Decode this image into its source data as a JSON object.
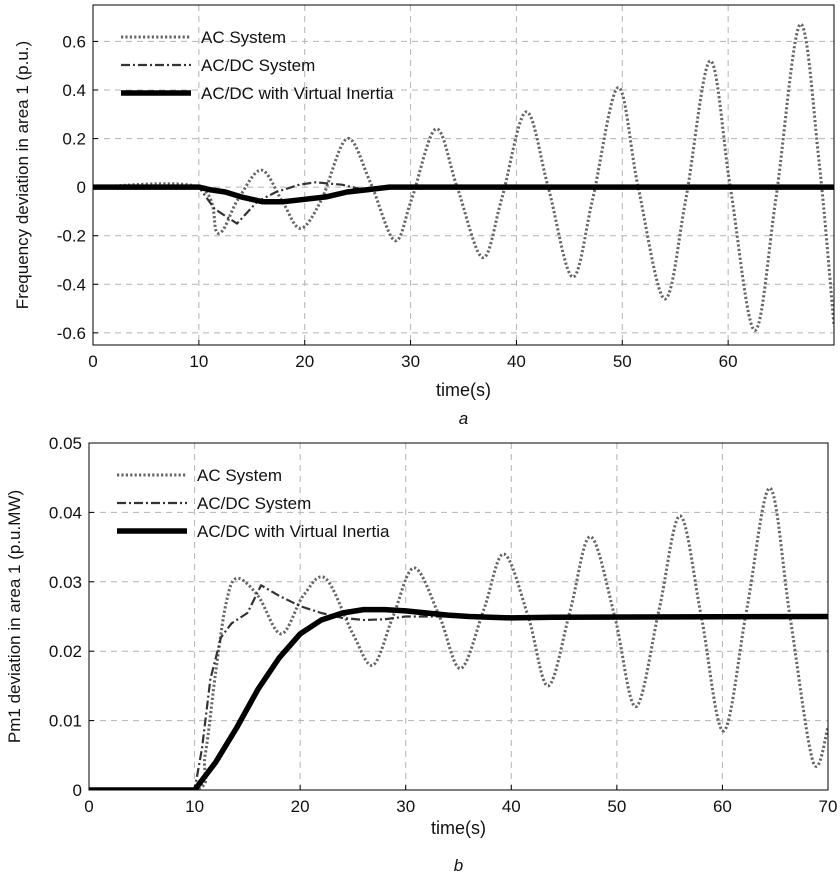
{
  "chart_data": [
    {
      "type": "line",
      "caption": "a",
      "title": "",
      "xlabel": "time(s)",
      "ylabel": "Frequency deviation in area 1 (p.u.)",
      "xlim": [
        0,
        70
      ],
      "ylim": [
        -0.65,
        0.75
      ],
      "xticks": [
        0,
        10,
        20,
        30,
        40,
        50,
        60
      ],
      "yticks": [
        -0.6,
        -0.4,
        -0.2,
        0,
        0.2,
        0.4,
        0.6
      ],
      "xtick_labels": [
        "0",
        "10",
        "20",
        "30",
        "40",
        "50",
        "60"
      ],
      "ytick_labels": [
        "-0.6",
        "-0.4",
        "-0.2",
        "0",
        "0.2",
        "0.4",
        "0.6"
      ],
      "grid": true,
      "legend_position": "top-left",
      "series": [
        {
          "name": "AC System",
          "style": "dotted",
          "color": "#666666",
          "x": [
            0,
            10,
            11.8,
            13.7,
            15.9,
            17.9,
            19.6,
            21.6,
            24.0,
            26.2,
            28.5,
            30.1,
            32.4,
            34.4,
            36.8,
            38.6,
            40.9,
            43.0,
            45.3,
            47.2,
            49.6,
            51.5,
            54.0,
            56.0,
            58.3,
            60.2,
            62.5,
            64.5,
            66.8,
            68.6,
            70
          ],
          "y": [
            0,
            0,
            -0.19,
            -0.05,
            0.07,
            -0.06,
            -0.17,
            -0.05,
            0.2,
            0.02,
            -0.22,
            -0.05,
            0.24,
            0.0,
            -0.29,
            -0.05,
            0.31,
            0.0,
            -0.37,
            -0.05,
            0.41,
            0.0,
            -0.46,
            -0.05,
            0.52,
            0.0,
            -0.59,
            -0.05,
            0.67,
            0.1,
            -0.57
          ]
        },
        {
          "name": "AC/DC System",
          "style": "dashdot",
          "color": "#333333",
          "x": [
            0,
            10,
            11.5,
            13.6,
            15.5,
            17.3,
            19.5,
            21.0,
            23.5,
            25.5,
            28,
            70
          ],
          "y": [
            0,
            0,
            -0.09,
            -0.15,
            -0.06,
            -0.02,
            0.01,
            0.02,
            0.01,
            -0.01,
            0,
            0
          ]
        },
        {
          "name": "AC/DC with Virtual Inertia",
          "style": "solid-thick",
          "color": "#000000",
          "x": [
            0,
            10,
            11,
            12.5,
            14,
            16,
            18,
            20,
            22,
            24,
            26,
            28,
            29,
            70
          ],
          "y": [
            0,
            0,
            -0.01,
            -0.02,
            -0.04,
            -0.06,
            -0.06,
            -0.05,
            -0.04,
            -0.02,
            -0.01,
            0,
            0,
            0
          ]
        }
      ]
    },
    {
      "type": "line",
      "caption": "b",
      "title": "",
      "xlabel": "time(s)",
      "ylabel": "Pm1 deviation in area 1 (p.u.MW)",
      "xlim": [
        0,
        70
      ],
      "ylim": [
        0,
        0.05
      ],
      "xticks": [
        0,
        10,
        20,
        30,
        40,
        50,
        60,
        70
      ],
      "yticks": [
        0,
        0.01,
        0.02,
        0.03,
        0.04,
        0.05
      ],
      "xtick_labels": [
        "0",
        "10",
        "20",
        "30",
        "40",
        "50",
        "60",
        "70"
      ],
      "ytick_labels": [
        "0",
        "0.01",
        "0.02",
        "0.03",
        "0.04",
        "0.05"
      ],
      "grid": true,
      "legend_position": "top-left",
      "series": [
        {
          "name": "AC System",
          "style": "dotted",
          "color": "#666666",
          "x": [
            0,
            10,
            11,
            12,
            13,
            14,
            16,
            18.2,
            20.3,
            22.4,
            25,
            26.9,
            28.8,
            30.8,
            33.2,
            35.2,
            37.4,
            39.3,
            41.6,
            43.5,
            45.6,
            47.5,
            49.8,
            51.8,
            54.0,
            56.0,
            58.0,
            60.1,
            62.3,
            64.5,
            66.4,
            68.6,
            70
          ],
          "y": [
            0,
            0,
            0.005,
            0.017,
            0.027,
            0.0305,
            0.028,
            0.0225,
            0.028,
            0.0305,
            0.0225,
            0.018,
            0.025,
            0.032,
            0.025,
            0.0175,
            0.026,
            0.034,
            0.025,
            0.015,
            0.026,
            0.0365,
            0.025,
            0.012,
            0.026,
            0.0395,
            0.025,
            0.0085,
            0.026,
            0.0435,
            0.025,
            0.004,
            0.009
          ]
        },
        {
          "name": "AC/DC System",
          "style": "dashdot",
          "color": "#333333",
          "x": [
            0,
            10,
            10.7,
            11.5,
            12.5,
            13.5,
            15,
            16.3,
            18,
            20,
            22,
            24,
            26,
            28,
            30,
            70
          ],
          "y": [
            0,
            0,
            0.006,
            0.016,
            0.022,
            0.024,
            0.0255,
            0.0295,
            0.028,
            0.0265,
            0.0255,
            0.0248,
            0.0245,
            0.0246,
            0.025,
            0.025
          ]
        },
        {
          "name": "AC/DC with Virtual Inertia",
          "style": "solid-thick",
          "color": "#000000",
          "x": [
            0,
            10,
            11,
            12,
            14,
            16,
            18,
            20,
            22,
            24,
            26,
            28,
            30,
            32,
            34,
            36,
            38,
            40,
            44,
            70
          ],
          "y": [
            0,
            0,
            0.002,
            0.004,
            0.009,
            0.0145,
            0.019,
            0.0225,
            0.0245,
            0.0255,
            0.026,
            0.026,
            0.0258,
            0.0255,
            0.0252,
            0.025,
            0.0249,
            0.0248,
            0.0249,
            0.025
          ]
        }
      ]
    }
  ]
}
